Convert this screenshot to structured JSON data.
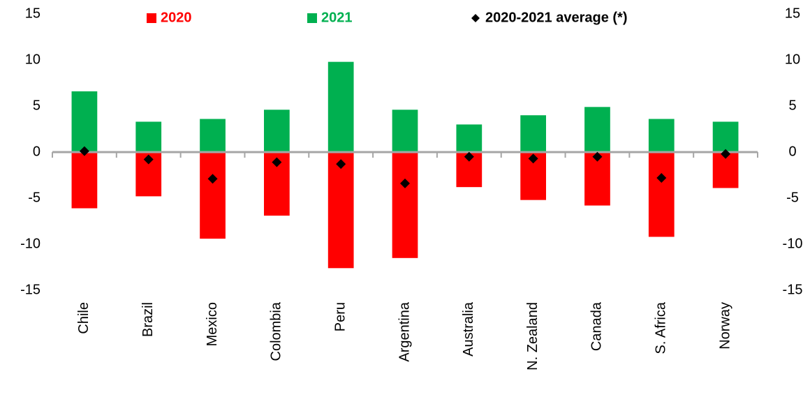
{
  "chart_data": {
    "type": "bar",
    "categories": [
      "Chile",
      "Brazil",
      "Mexico",
      "Colombia",
      "Peru",
      "Argentina",
      "Australia",
      "N. Zealand",
      "Canada",
      "S. Africa",
      "Norway"
    ],
    "series": [
      {
        "name": "2020",
        "color": "#ff0000",
        "values": [
          -6.1,
          -4.8,
          -9.4,
          -6.9,
          -12.6,
          -11.5,
          -3.8,
          -5.2,
          -5.8,
          -9.2,
          -3.9
        ]
      },
      {
        "name": "2021",
        "color": "#00b050",
        "values": [
          6.6,
          3.3,
          3.6,
          4.6,
          9.8,
          4.6,
          3.0,
          4.0,
          4.9,
          3.6,
          3.3
        ]
      },
      {
        "name": "2020-2021 average (*)",
        "color": "#000000",
        "type": "scatter",
        "values": [
          0.1,
          -0.8,
          -2.9,
          -1.1,
          -1.3,
          -3.4,
          -0.5,
          -0.7,
          -0.5,
          -2.8,
          -0.2
        ]
      }
    ],
    "ylim": [
      -15,
      15
    ],
    "yticks": [
      -15,
      -10,
      -5,
      0,
      5,
      10,
      15
    ],
    "y2lim": [
      -15,
      15
    ],
    "y2ticks": [
      -15,
      -10,
      -5,
      0,
      5,
      10,
      15
    ],
    "legend": "top"
  }
}
